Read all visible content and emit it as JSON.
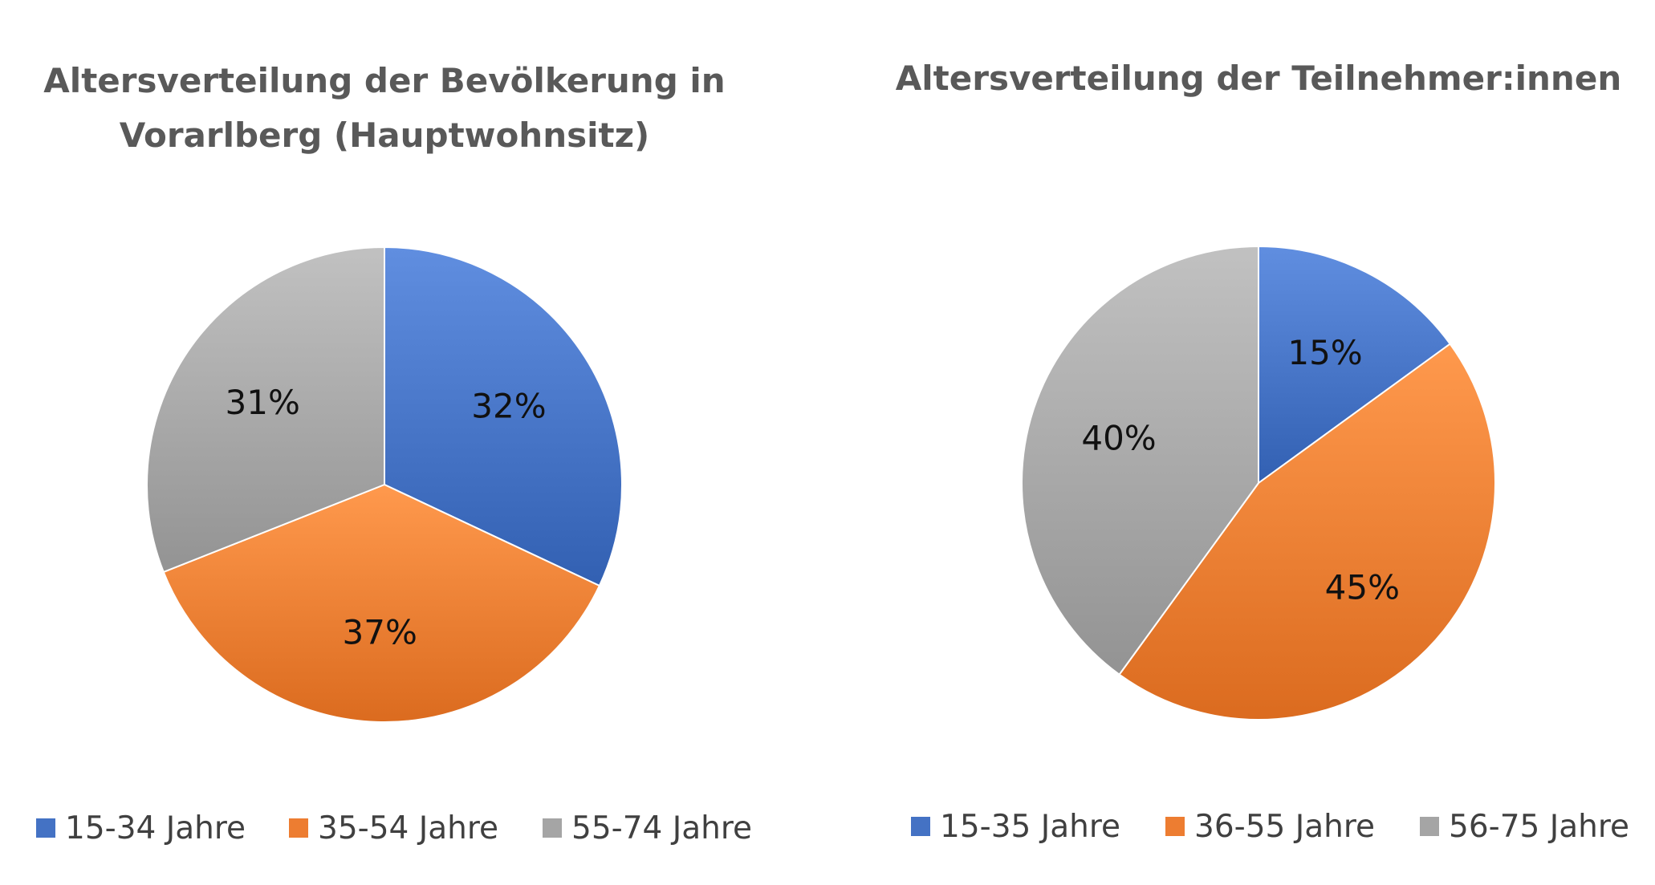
{
  "chart_data": [
    {
      "type": "pie",
      "title_lines": [
        "Altersverteilung der Bevölkerung in",
        "Vorarlberg (Hauptwohnsitz)"
      ],
      "categories": [
        "15-34 Jahre",
        "35-54 Jahre",
        "55-74 Jahre"
      ],
      "values": [
        32,
        37,
        31
      ],
      "labels": [
        "32%",
        "37%",
        "31%"
      ],
      "colors": [
        "#4472C4",
        "#ED7D31",
        "#A5A5A5"
      ],
      "start_angle": "12 o'clock",
      "direction": "clockwise",
      "legend": "bottom"
    },
    {
      "type": "pie",
      "title_lines": [
        "Altersverteilung der Teilnehmer:innen"
      ],
      "categories": [
        "15-35 Jahre",
        "36-55 Jahre",
        "56-75 Jahre"
      ],
      "values": [
        15,
        45,
        40
      ],
      "labels": [
        "15%",
        "45%",
        "40%"
      ],
      "colors": [
        "#4472C4",
        "#ED7D31",
        "#A5A5A5"
      ],
      "start_angle": "12 o'clock",
      "direction": "clockwise",
      "legend": "bottom"
    }
  ]
}
